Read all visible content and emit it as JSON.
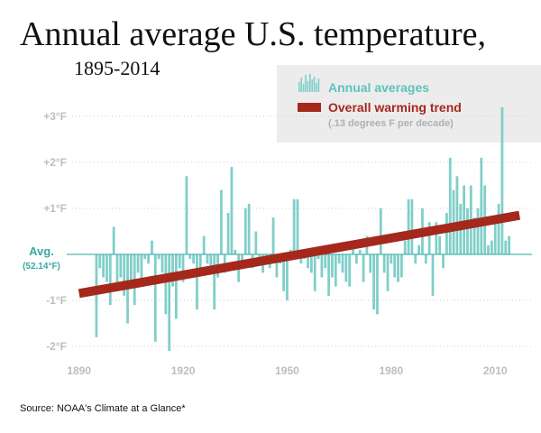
{
  "chart_data": {
    "type": "bar",
    "title": "Annual average U.S. temperature,",
    "subtitle": "1895-2014",
    "baseline_label": "Avg.",
    "baseline_value_label": "(52.14°F)",
    "y_tick_labels": [
      "+3°F",
      "+2°F",
      "+1°F",
      "-1°F",
      "-2°F"
    ],
    "y_tick_values": [
      3,
      2,
      1,
      -1,
      -2
    ],
    "x_tick_labels": [
      "1890",
      "1920",
      "1950",
      "1980",
      "2010"
    ],
    "x_tick_values": [
      1890,
      1920,
      1950,
      1980,
      2010
    ],
    "xlim": [
      1888,
      2018
    ],
    "ylim": [
      -2.2,
      3.3
    ],
    "legend": [
      {
        "name": "Annual averages",
        "color": "#7fcfc8"
      },
      {
        "name": "Overall warming trend",
        "color": "#a5281c",
        "note": "(.13 degrees F per decade)"
      }
    ],
    "series": [
      {
        "name": "Annual averages",
        "start_year": 1895,
        "end_year": 2014,
        "values": [
          -1.8,
          -0.3,
          -0.5,
          -0.6,
          -1.1,
          0.6,
          -0.8,
          -0.5,
          -0.9,
          -1.5,
          -0.6,
          -1.1,
          -0.4,
          -0.6,
          -0.1,
          -0.2,
          0.3,
          -1.9,
          -0.1,
          -0.4,
          -1.3,
          -2.1,
          -0.7,
          -1.4,
          -0.3,
          -0.6,
          1.7,
          -0.1,
          -0.2,
          -1.2,
          -0.3,
          0.4,
          -0.2,
          -0.4,
          -1.2,
          -0.5,
          1.4,
          -0.4,
          0.9,
          1.9,
          0.1,
          -0.6,
          -0.3,
          1.0,
          1.1,
          -0.3,
          0.5,
          -0.1,
          -0.4,
          -0.2,
          -0.3,
          0.8,
          -0.5,
          -0.2,
          -0.8,
          -1.0,
          0.1,
          1.2,
          1.2,
          -0.2,
          -0.1,
          -0.3,
          -0.4,
          -0.8,
          -0.1,
          -0.5,
          -0.3,
          -0.9,
          -0.5,
          -0.7,
          -0.2,
          -0.4,
          -0.6,
          -0.7,
          0.2,
          -0.2,
          0.1,
          -0.6,
          0.4,
          -0.4,
          -1.2,
          -1.3,
          1.0,
          -0.4,
          -0.8,
          -0.2,
          -0.5,
          -0.6,
          -0.5,
          0.3,
          1.2,
          1.2,
          -0.2,
          0.2,
          1.0,
          -0.2,
          0.7,
          -0.9,
          0.7,
          0.4,
          -0.3,
          0.9,
          2.1,
          1.4,
          1.7,
          1.1,
          1.5,
          1.0,
          1.5,
          0.8,
          1.0,
          2.1,
          1.5,
          0.2,
          0.3,
          0.7,
          1.1,
          3.2,
          0.3,
          0.4
        ]
      },
      {
        "name": "Overall warming trend",
        "x": [
          1890,
          2017
        ],
        "values": [
          -0.85,
          0.85
        ]
      }
    ]
  },
  "source": "Source: NOAA's Climate at a Glance*"
}
